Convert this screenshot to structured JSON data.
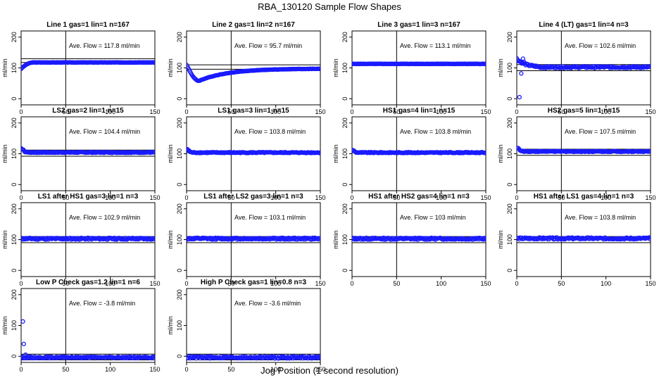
{
  "figure": {
    "title": "RBA_130120  Sample Flow Shapes",
    "xlabel": "Jog Position (1 second resolution)"
  },
  "colors": {
    "points": "#1a1aff",
    "axis": "#000000",
    "background": "#ffffff"
  },
  "chart_data": [
    {
      "type": "scatter",
      "title": "Line 1 gas=1 lin=1 n=167",
      "annotation": "Ave. Flow = 117.8  ml/min",
      "ylabel": "ml/min",
      "xlim": [
        0,
        150
      ],
      "ylim": [
        -20,
        220
      ],
      "xticks": [
        0,
        50,
        100,
        150
      ],
      "yticks": [
        0,
        100,
        200
      ],
      "hlines": [
        117.8,
        130
      ],
      "vline": 50,
      "shape": "rise",
      "start": 97,
      "mean": 117.8,
      "noise": 0.5
    },
    {
      "type": "scatter",
      "title": "Line 2 gas=1 lin=2 n=167",
      "annotation": "Ave. Flow = 95.7  ml/min",
      "ylabel": "ml/min",
      "xlim": [
        0,
        150
      ],
      "ylim": [
        -20,
        220
      ],
      "xticks": [
        0,
        50,
        100,
        150
      ],
      "yticks": [
        0,
        100,
        200
      ],
      "hlines": [
        95.7,
        110
      ],
      "vline": 50,
      "shape": "dip",
      "start": 110,
      "min": 58,
      "mean": 95.7,
      "noise": 0.5
    },
    {
      "type": "scatter",
      "title": "Line 3 gas=1 lin=3 n=167",
      "annotation": "Ave. Flow = 113.1  ml/min",
      "ylabel": "ml/min",
      "xlim": [
        0,
        150
      ],
      "ylim": [
        -20,
        220
      ],
      "xticks": [
        0,
        50,
        100,
        150
      ],
      "yticks": [
        0,
        100,
        200
      ],
      "hlines": [
        113.1
      ],
      "vline": 50,
      "shape": "flat",
      "mean": 113.1,
      "noise": 0.5
    },
    {
      "type": "scatter",
      "title": "Line 4 (LT) gas=1 lin=4 n=3",
      "annotation": "Ave. Flow = 102.6  ml/min",
      "ylabel": "ml/min",
      "xlim": [
        0,
        150
      ],
      "ylim": [
        -20,
        220
      ],
      "xticks": [
        0,
        50,
        100,
        150
      ],
      "yticks": [
        0,
        100,
        200
      ],
      "hlines": [
        91,
        111
      ],
      "vline": 50,
      "shape": "lt",
      "mean": 102.6,
      "noise": 3,
      "outliers": [
        [
          3,
          5
        ],
        [
          5,
          82
        ],
        [
          7,
          130
        ],
        [
          8,
          120
        ]
      ]
    },
    {
      "type": "scatter",
      "title": "LS2 gas=2 lin=1 n=15",
      "annotation": "Ave. Flow = 104.4  ml/min",
      "ylabel": "ml/min",
      "xlim": [
        0,
        150
      ],
      "ylim": [
        -20,
        220
      ],
      "xticks": [
        0,
        50,
        100,
        150
      ],
      "yticks": [
        0,
        100,
        200
      ],
      "hlines": [
        92,
        112
      ],
      "vline": 50,
      "shape": "spike",
      "start": 118,
      "mean": 104.4,
      "noise": 1.5
    },
    {
      "type": "scatter",
      "title": "LS1 gas=3 lin=1 n=15",
      "annotation": "Ave. Flow = 103.8  ml/min",
      "ylabel": "ml/min",
      "xlim": [
        0,
        150
      ],
      "ylim": [
        -20,
        220
      ],
      "xticks": [
        0,
        50,
        100,
        150
      ],
      "yticks": [
        0,
        100,
        200
      ],
      "hlines": [
        103.8
      ],
      "vline": 50,
      "shape": "spike",
      "start": 115,
      "mean": 103.8,
      "noise": 1.5
    },
    {
      "type": "scatter",
      "title": "HS1 gas=4 lin=1 n=15",
      "annotation": "Ave. Flow = 103.8  ml/min",
      "ylabel": "ml/min",
      "xlim": [
        0,
        150
      ],
      "ylim": [
        -20,
        220
      ],
      "xticks": [
        0,
        50,
        100,
        150
      ],
      "yticks": [
        0,
        100,
        200
      ],
      "hlines": [
        103.8
      ],
      "vline": 50,
      "shape": "spike",
      "start": 112,
      "mean": 103.8,
      "noise": 1.5
    },
    {
      "type": "scatter",
      "title": "HS2 gas=5 lin=1 n=15",
      "annotation": "Ave. Flow = 107.5  ml/min",
      "ylabel": "ml/min",
      "xlim": [
        0,
        150
      ],
      "ylim": [
        -20,
        220
      ],
      "xticks": [
        0,
        50,
        100,
        150
      ],
      "yticks": [
        0,
        100,
        200
      ],
      "hlines": [
        95,
        115
      ],
      "vline": 50,
      "shape": "spike",
      "start": 120,
      "mean": 107.5,
      "noise": 1.5
    },
    {
      "type": "scatter",
      "title": "LS1 after HS1 gas=3 lin=1 n=3",
      "annotation": "Ave. Flow = 102.9  ml/min",
      "ylabel": "ml/min",
      "xlim": [
        0,
        150
      ],
      "ylim": [
        -20,
        220
      ],
      "xticks": [
        0,
        50,
        100,
        150
      ],
      "yticks": [
        0,
        100,
        200
      ],
      "hlines": [
        90,
        110
      ],
      "vline": 50,
      "shape": "flat",
      "mean": 102.9,
      "noise": 3
    },
    {
      "type": "scatter",
      "title": "LS1 after LS2 gas=3 lin=1 n=3",
      "annotation": "Ave. Flow = 103.1  ml/min",
      "ylabel": "ml/min",
      "xlim": [
        0,
        150
      ],
      "ylim": [
        -20,
        220
      ],
      "xticks": [
        0,
        50,
        100,
        150
      ],
      "yticks": [
        0,
        100,
        200
      ],
      "hlines": [
        90,
        110
      ],
      "vline": 50,
      "shape": "flat",
      "mean": 103.1,
      "noise": 3
    },
    {
      "type": "scatter",
      "title": "HS1 after HS2 gas=4 lin=1 n=3",
      "annotation": "Ave. Flow = 103  ml/min",
      "ylabel": "ml/min",
      "xlim": [
        0,
        150
      ],
      "ylim": [
        -20,
        220
      ],
      "xticks": [
        0,
        50,
        100,
        150
      ],
      "yticks": [
        0,
        100,
        200
      ],
      "hlines": [
        90,
        110
      ],
      "vline": 50,
      "shape": "flat",
      "mean": 103,
      "noise": 3
    },
    {
      "type": "scatter",
      "title": "HS1 after LS1 gas=4 lin=1 n=3",
      "annotation": "Ave. Flow = 103.8  ml/min",
      "ylabel": "ml/min",
      "xlim": [
        0,
        150
      ],
      "ylim": [
        -20,
        220
      ],
      "xticks": [
        0,
        50,
        100,
        150
      ],
      "yticks": [
        0,
        100,
        200
      ],
      "hlines": [
        90,
        110
      ],
      "vline": 50,
      "shape": "flat",
      "mean": 103.8,
      "noise": 3
    },
    {
      "type": "scatter",
      "title": "Low P Check gas=1.2 lin=1 n=6",
      "annotation": "Ave. Flow = -3.8  ml/min",
      "ylabel": "ml/min",
      "xlim": [
        0,
        150
      ],
      "ylim": [
        -20,
        220
      ],
      "xticks": [
        0,
        50,
        100,
        150
      ],
      "yticks": [
        0,
        100,
        200
      ],
      "hlines": [
        -12,
        7
      ],
      "vline": 50,
      "shape": "flat",
      "mean": -3.8,
      "noise": 2.5,
      "outliers": [
        [
          2,
          113
        ],
        [
          3,
          40
        ],
        [
          5,
          5
        ]
      ]
    },
    {
      "type": "scatter",
      "title": "High P Check gas=1 lin=0.8 n=3",
      "annotation": "Ave. Flow = -3.6  ml/min",
      "ylabel": "ml/min",
      "xlim": [
        0,
        150
      ],
      "ylim": [
        -20,
        220
      ],
      "xticks": [
        0,
        50,
        100,
        150
      ],
      "yticks": [
        0,
        100,
        200
      ],
      "hlines": [
        -12,
        7
      ],
      "vline": 50,
      "shape": "flat",
      "mean": -3.6,
      "noise": 3.5
    }
  ]
}
